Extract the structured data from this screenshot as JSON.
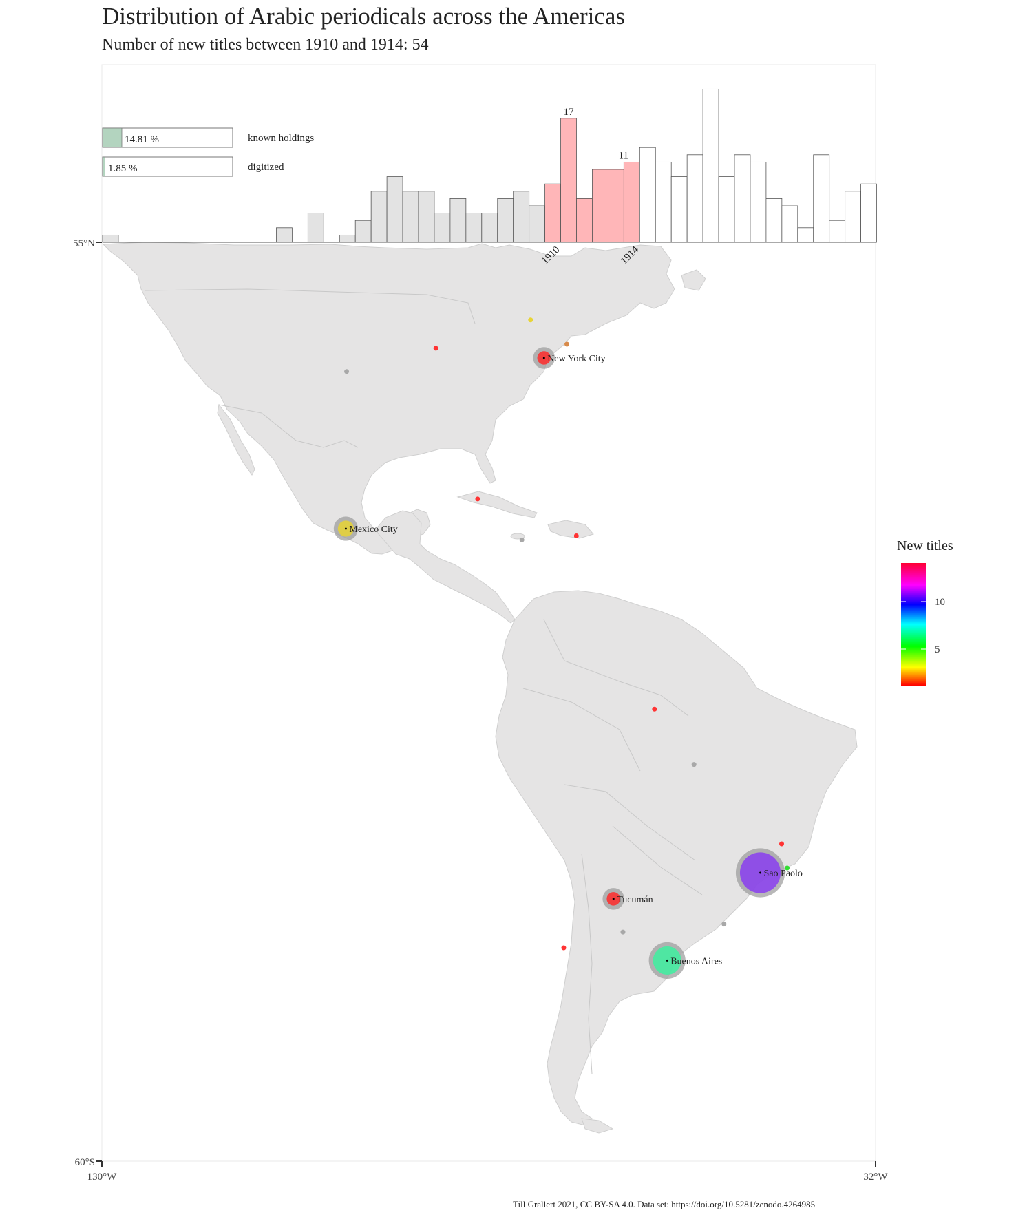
{
  "title": "Distribution of Arabic periodicals across the Americas",
  "subtitle": "Number of new titles between 1910 and 1914: 54",
  "legend": {
    "title": "New titles",
    "ticks": [
      "10",
      "5"
    ],
    "gradient_colors": [
      "#ff0033",
      "#ff00ff",
      "#0000ff",
      "#00ffff",
      "#00ff00",
      "#ffff00",
      "#ff0000"
    ]
  },
  "stats": [
    {
      "label": "known holdings",
      "value_text": "14.81 %",
      "fraction": 0.1481
    },
    {
      "label": "digitized",
      "value_text": "1.85 %",
      "fraction": 0.0185
    }
  ],
  "axes": {
    "lat_top": "55°N",
    "lat_bottom": "60°S",
    "lon_left": "130°W",
    "lon_right": "32°W"
  },
  "histogram": {
    "highlight_start_label": "1910",
    "highlight_end_label": "1914",
    "peak_label": "17",
    "end_label": "11",
    "counts": [
      1,
      0,
      0,
      0,
      0,
      0,
      0,
      0,
      0,
      0,
      0,
      2,
      0,
      4,
      0,
      1,
      3,
      7,
      9,
      7,
      7,
      4,
      6,
      4,
      4,
      6,
      7,
      5,
      8,
      17,
      6,
      10,
      10,
      11,
      13,
      11,
      9,
      12,
      21,
      9,
      12,
      11,
      6,
      5,
      2,
      12,
      3,
      7,
      8
    ],
    "highlight_range": [
      28,
      33
    ]
  },
  "cities": [
    {
      "name": "New York City",
      "lon": -74.0,
      "lat": 40.7,
      "titles": 1,
      "label": true
    },
    {
      "name": "Mexico City",
      "lon": -99.1,
      "lat": 19.4,
      "titles": 2,
      "label": true
    },
    {
      "name": "Sao Paolo",
      "lon": -46.6,
      "lat": -23.5,
      "titles": 12,
      "label": true
    },
    {
      "name": "Tucumán",
      "lon": -65.2,
      "lat": -26.8,
      "titles": 1,
      "label": true
    },
    {
      "name": "Buenos Aires",
      "lon": -58.4,
      "lat": -34.6,
      "titles": 7,
      "label": true
    }
  ],
  "credit": "Till Grallert 2021, CC BY-SA 4.0. Data set: https://doi.org/10.5281/zenodo.4264985"
}
